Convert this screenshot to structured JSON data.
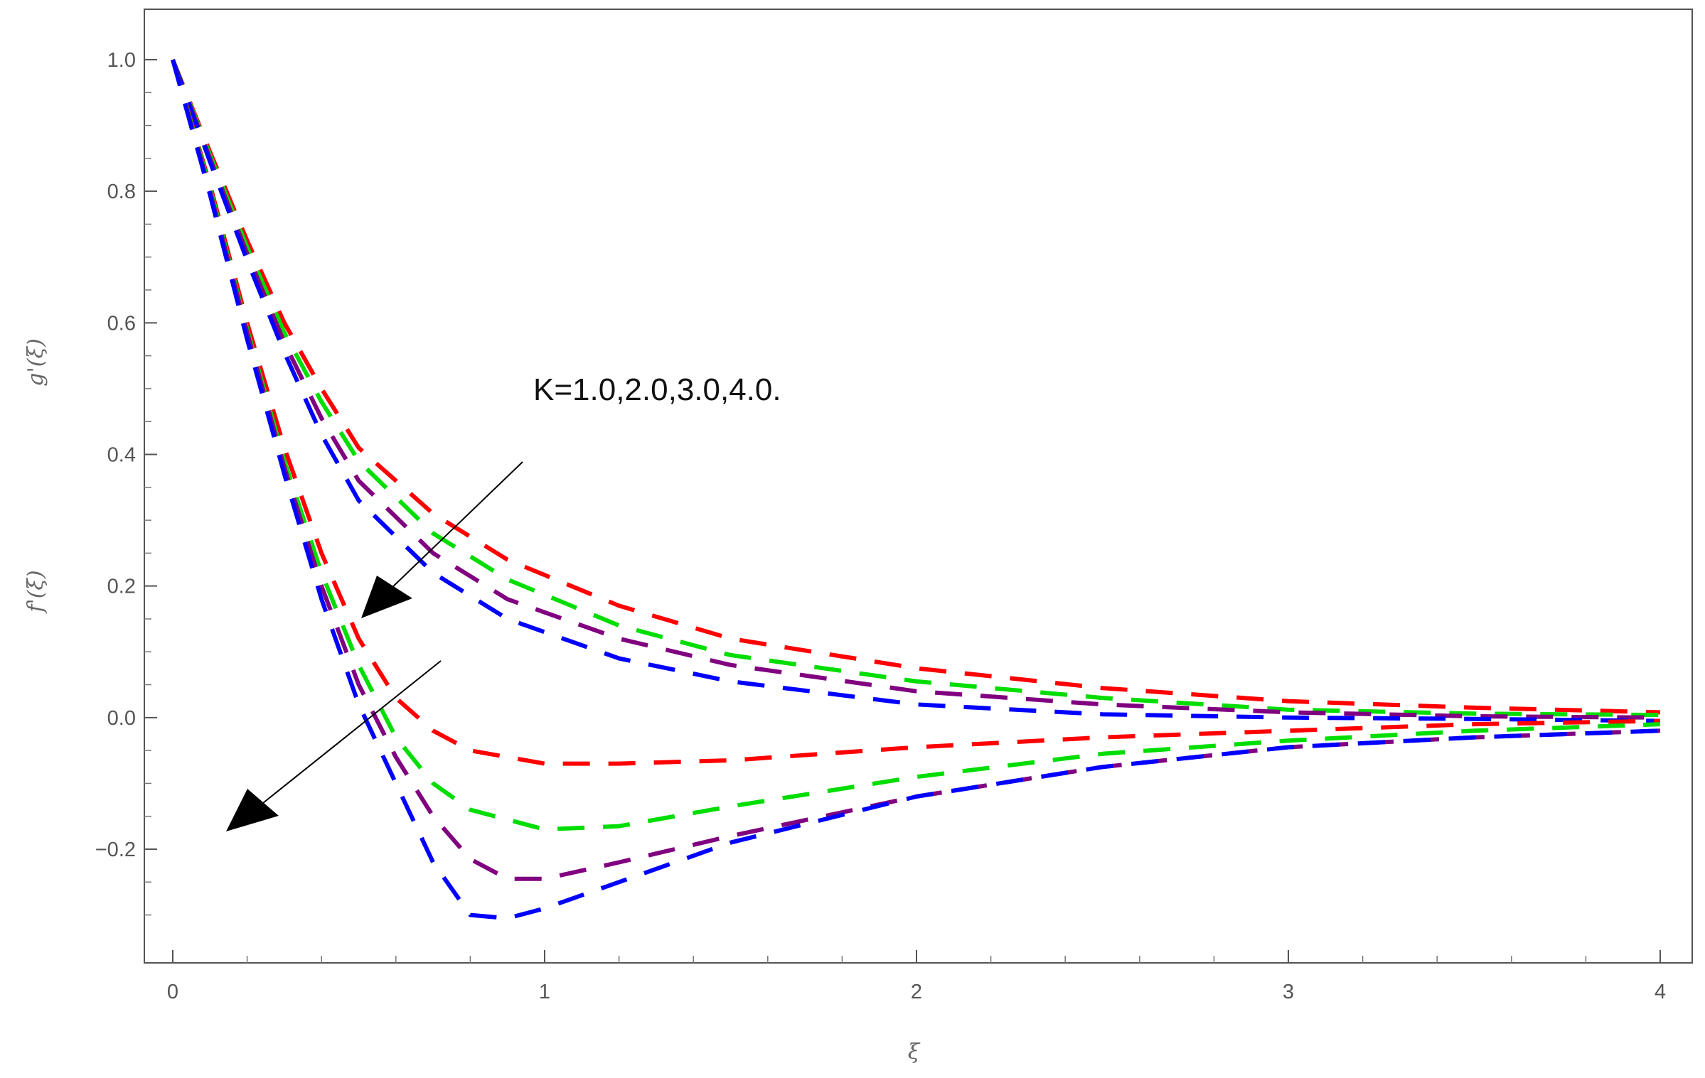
{
  "chart_data": {
    "type": "line",
    "title": "",
    "xlabel": "ξ",
    "ylabels": [
      "g'(ξ)",
      "f'(ξ)"
    ],
    "xlim": [
      0,
      4
    ],
    "ylim": [
      -0.33,
      1.08
    ],
    "x_ticks": [
      "0",
      "1",
      "2",
      "3",
      "4"
    ],
    "y_ticks": [
      "1.0",
      "0.8",
      "0.6",
      "0.4",
      "0.2",
      "0.0",
      "−0.2"
    ],
    "x_tick_values": [
      0,
      1,
      2,
      3,
      4
    ],
    "y_tick_values": [
      1.0,
      0.8,
      0.6,
      0.4,
      0.2,
      0.0,
      -0.2
    ],
    "grid": false,
    "line_style": "dashed",
    "annotation": "K=1.0,2.0,3.0,4.0.",
    "colors": {
      "K=1.0": "#ff0000",
      "K=2.0": "#00dd00",
      "K=3.0": "#800080",
      "K=4.0": "#0000ff",
      "axis": "#555555",
      "arrow": "#000000"
    },
    "series": [
      {
        "group": "g",
        "color": "#ff0000",
        "x": [
          0,
          0.1,
          0.2,
          0.3,
          0.4,
          0.5,
          0.7,
          0.9,
          1.2,
          1.5,
          2.0,
          2.5,
          3.0,
          3.5,
          4.0
        ],
        "y": [
          1.0,
          0.86,
          0.725,
          0.6,
          0.5,
          0.41,
          0.31,
          0.24,
          0.17,
          0.12,
          0.075,
          0.045,
          0.025,
          0.015,
          0.008
        ]
      },
      {
        "group": "g",
        "color": "#00dd00",
        "x": [
          0,
          0.1,
          0.2,
          0.3,
          0.4,
          0.5,
          0.7,
          0.9,
          1.2,
          1.5,
          2.0,
          2.5,
          3.0,
          3.5,
          4.0
        ],
        "y": [
          1.0,
          0.855,
          0.715,
          0.585,
          0.48,
          0.39,
          0.28,
          0.21,
          0.14,
          0.095,
          0.055,
          0.03,
          0.012,
          0.006,
          0.004
        ]
      },
      {
        "group": "g",
        "color": "#800080",
        "x": [
          0,
          0.1,
          0.2,
          0.3,
          0.4,
          0.5,
          0.7,
          0.9,
          1.2,
          1.5,
          2.0,
          2.5,
          3.0,
          3.5,
          4.0
        ],
        "y": [
          1.0,
          0.85,
          0.705,
          0.57,
          0.455,
          0.36,
          0.25,
          0.18,
          0.12,
          0.08,
          0.04,
          0.02,
          0.008,
          0.002,
          0.0
        ]
      },
      {
        "group": "g",
        "color": "#0000ff",
        "x": [
          0,
          0.1,
          0.2,
          0.3,
          0.4,
          0.5,
          0.7,
          0.9,
          1.2,
          1.5,
          2.0,
          2.5,
          3.0,
          3.5,
          4.0
        ],
        "y": [
          1.0,
          0.845,
          0.695,
          0.555,
          0.43,
          0.33,
          0.22,
          0.15,
          0.09,
          0.055,
          0.02,
          0.005,
          0.0,
          -0.002,
          -0.005
        ]
      },
      {
        "group": "f",
        "color": "#ff0000",
        "x": [
          0,
          0.1,
          0.2,
          0.3,
          0.4,
          0.5,
          0.6,
          0.7,
          0.8,
          1.0,
          1.2,
          1.5,
          2.0,
          2.5,
          3.0,
          3.5,
          4.0
        ],
        "y": [
          1.0,
          0.81,
          0.6,
          0.41,
          0.25,
          0.12,
          0.03,
          -0.02,
          -0.05,
          -0.07,
          -0.07,
          -0.065,
          -0.045,
          -0.03,
          -0.02,
          -0.01,
          -0.005
        ]
      },
      {
        "group": "f",
        "color": "#00dd00",
        "x": [
          0,
          0.1,
          0.2,
          0.3,
          0.4,
          0.5,
          0.6,
          0.7,
          0.8,
          1.0,
          1.2,
          1.5,
          2.0,
          2.5,
          3.0,
          3.5,
          4.0
        ],
        "y": [
          1.0,
          0.805,
          0.59,
          0.39,
          0.22,
          0.08,
          -0.03,
          -0.1,
          -0.14,
          -0.17,
          -0.165,
          -0.135,
          -0.09,
          -0.055,
          -0.035,
          -0.02,
          -0.01
        ]
      },
      {
        "group": "f",
        "color": "#800080",
        "x": [
          0,
          0.1,
          0.2,
          0.3,
          0.4,
          0.5,
          0.6,
          0.7,
          0.8,
          0.9,
          1.0,
          1.2,
          1.5,
          2.0,
          2.5,
          3.0,
          3.5,
          4.0
        ],
        "y": [
          1.0,
          0.8,
          0.585,
          0.38,
          0.2,
          0.05,
          -0.06,
          -0.15,
          -0.215,
          -0.245,
          -0.245,
          -0.22,
          -0.18,
          -0.12,
          -0.075,
          -0.045,
          -0.03,
          -0.02
        ]
      },
      {
        "group": "f",
        "color": "#0000ff",
        "x": [
          0,
          0.1,
          0.2,
          0.3,
          0.4,
          0.5,
          0.6,
          0.7,
          0.8,
          0.9,
          1.0,
          1.2,
          1.5,
          2.0,
          2.5,
          3.0,
          3.5,
          4.0
        ],
        "y": [
          1.0,
          0.795,
          0.575,
          0.37,
          0.18,
          0.02,
          -0.1,
          -0.22,
          -0.3,
          -0.305,
          -0.29,
          -0.25,
          -0.19,
          -0.12,
          -0.075,
          -0.045,
          -0.03,
          -0.02
        ]
      }
    ]
  }
}
